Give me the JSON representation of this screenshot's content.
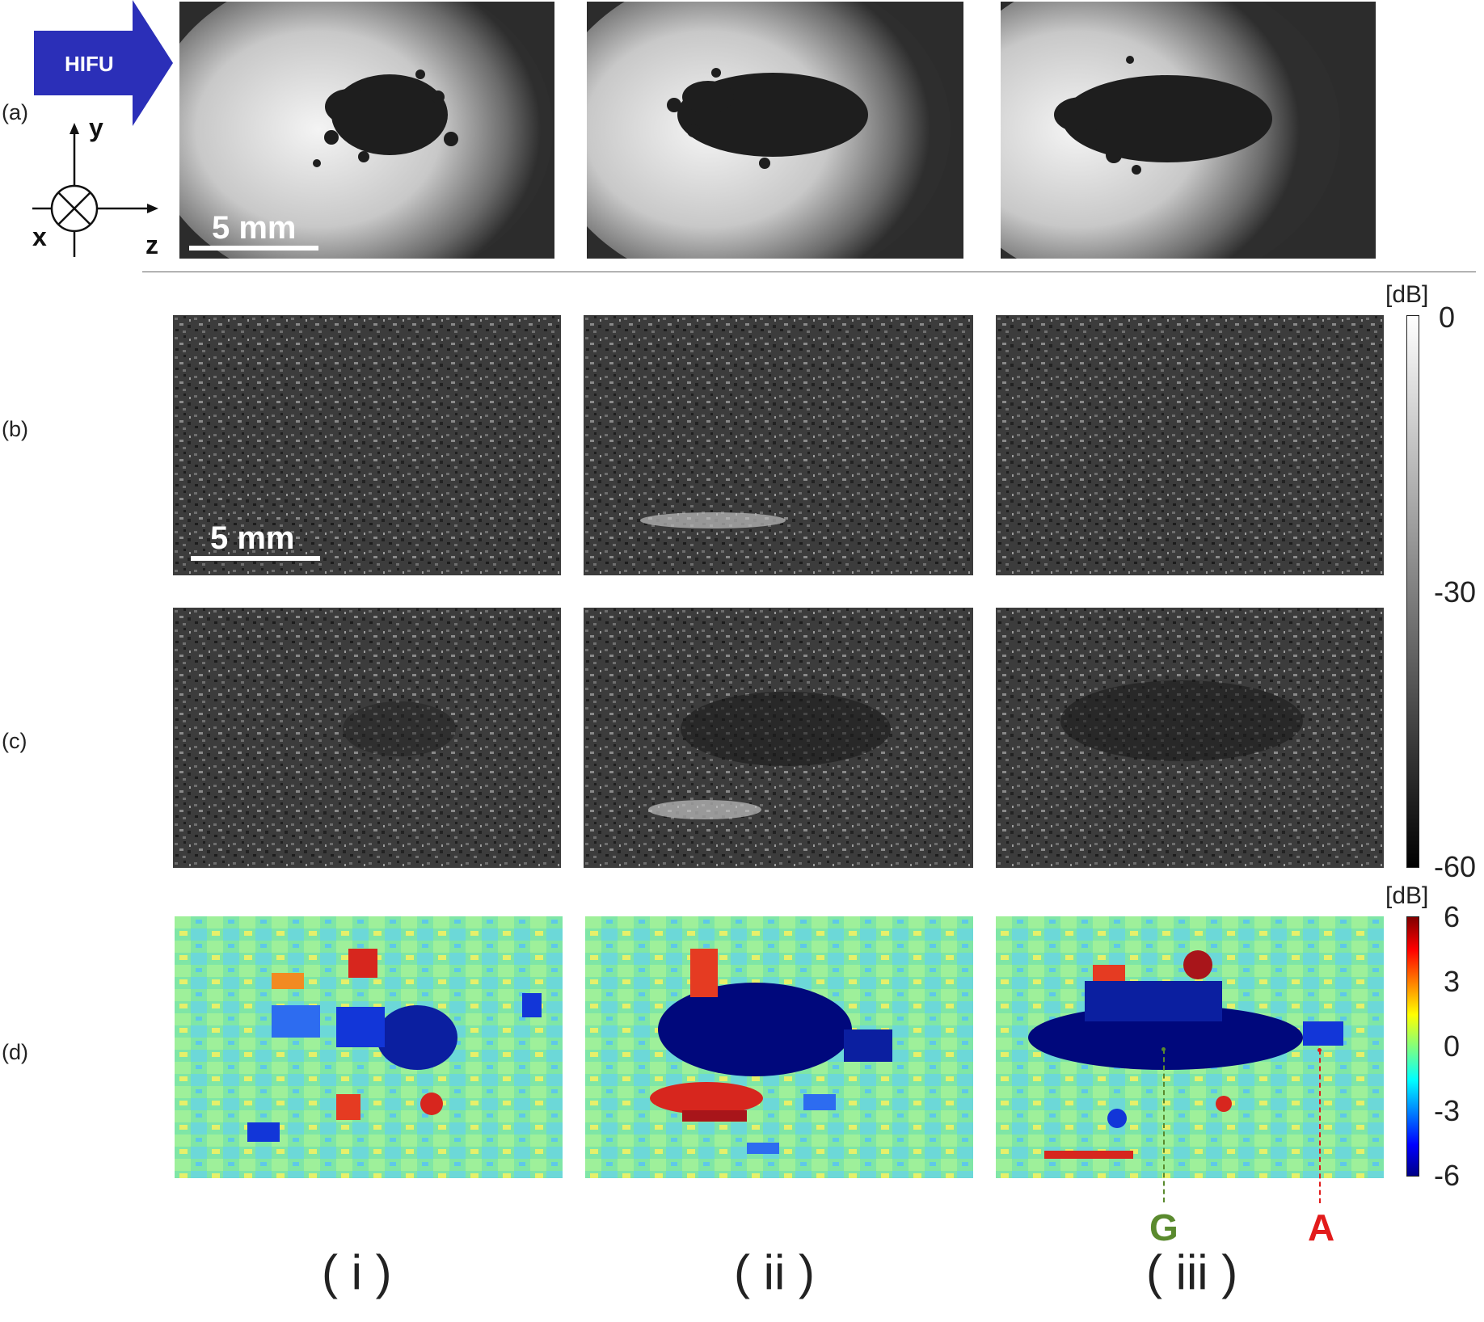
{
  "row_labels": [
    "(a)",
    "(b)",
    "(c)",
    "(d)"
  ],
  "column_labels": [
    "( i )",
    "( ii )",
    "( iii )"
  ],
  "hifu_label": "HIFU",
  "axes": {
    "y": "y",
    "x": "x",
    "z": "z"
  },
  "scale_bar_label": "5 mm",
  "colorbar_bmode": {
    "unit": "[dB]",
    "ticks": [
      "0",
      "-30",
      "-60"
    ]
  },
  "colorbar_diff": {
    "unit": "[dB]",
    "ticks": [
      "6",
      "3",
      "0",
      "-3",
      "-6"
    ]
  },
  "markers": {
    "G": "G",
    "A": "A"
  },
  "colors": {
    "hifu_arrow": "#2b2fb8",
    "marker_G": "#5a8a2e",
    "marker_A": "#e21b1b"
  }
}
